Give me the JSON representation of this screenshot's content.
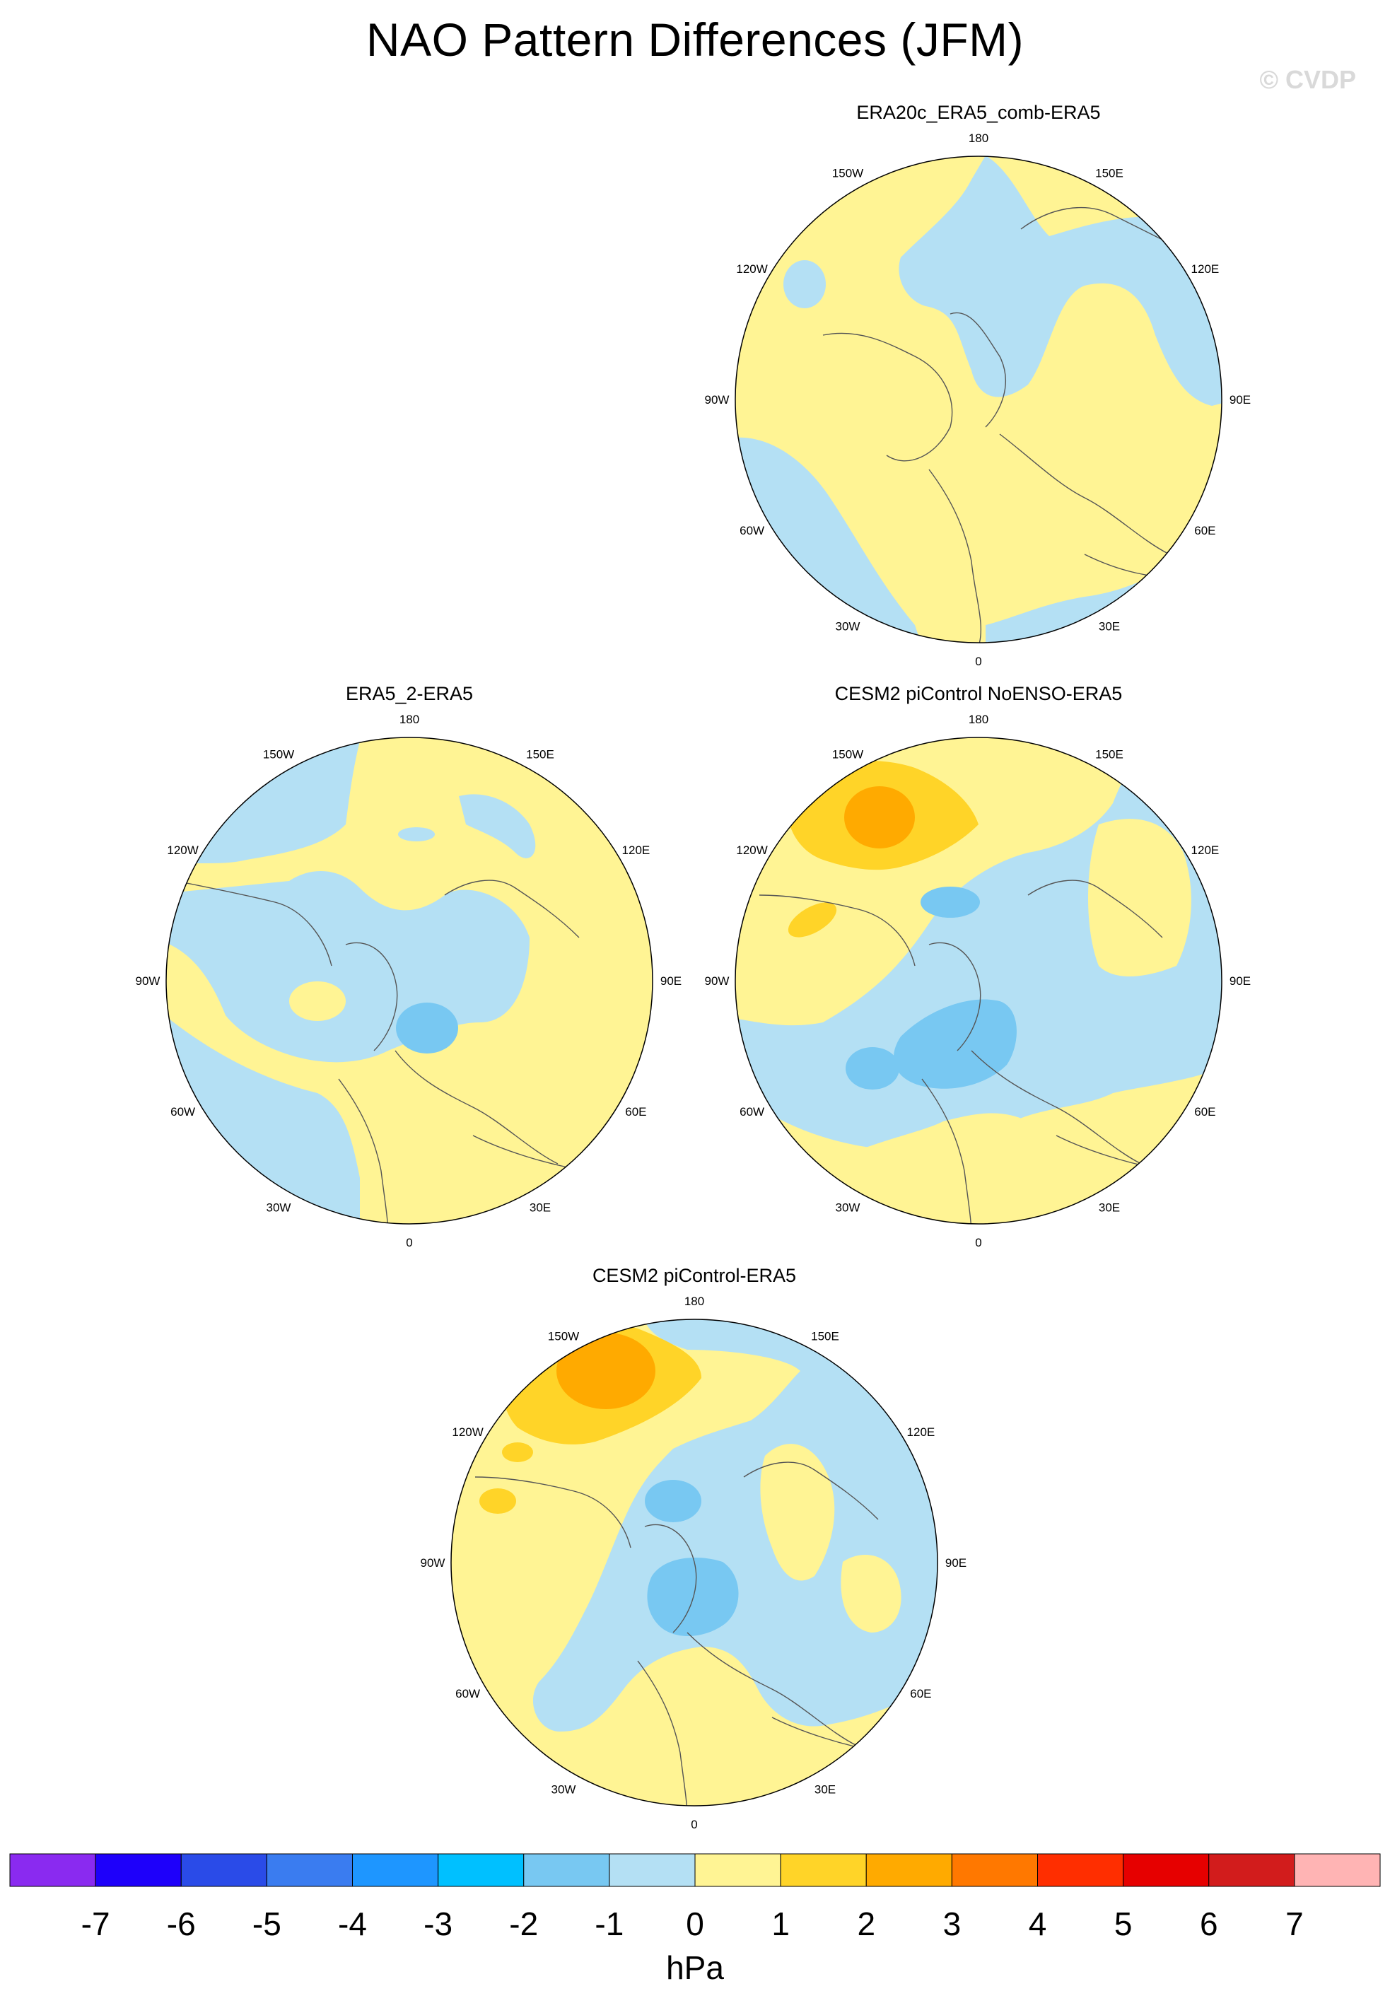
{
  "title": "NAO Pattern Differences (JFM)",
  "watermark": "© CVDP",
  "panels": [
    {
      "id": "p1",
      "title": "ERA20c_ERA5_comb-ERA5"
    },
    {
      "id": "p2",
      "title": "ERA5_2-ERA5"
    },
    {
      "id": "p3",
      "title": "CESM2 piControl NoENSO-ERA5"
    },
    {
      "id": "p4",
      "title": "CESM2 piControl-ERA5"
    }
  ],
  "longitude_labels": [
    "180",
    "150E",
    "120E",
    "90E",
    "60E",
    "30E",
    "0",
    "30W",
    "60W",
    "90W",
    "120W",
    "150W"
  ],
  "colorbar": {
    "ticks": [
      "-7",
      "-6",
      "-5",
      "-4",
      "-3",
      "-2",
      "-1",
      "0",
      "1",
      "2",
      "3",
      "4",
      "5",
      "6",
      "7"
    ],
    "units": "hPa",
    "colors": [
      "#8a2af0",
      "#1e00fa",
      "#2a4be8",
      "#3a7cf0",
      "#1e96ff",
      "#00c0ff",
      "#78c8f2",
      "#b4e0f4",
      "#fff494",
      "#ffd428",
      "#ffaa00",
      "#ff7800",
      "#ff2e00",
      "#e60000",
      "#d21c1c",
      "#ffb4b4"
    ]
  }
}
